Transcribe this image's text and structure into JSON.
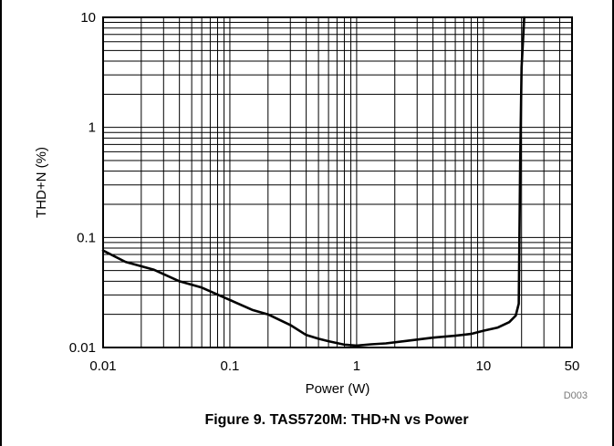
{
  "chart_data": {
    "type": "line",
    "title": "",
    "xlabel": "Power (W)",
    "ylabel": "THD+N (%)",
    "xscale": "log",
    "yscale": "log",
    "xlim": [
      0.01,
      50
    ],
    "ylim": [
      0.01,
      10
    ],
    "grid": true,
    "legend": "none",
    "x_ticks": [
      0.01,
      0.1,
      1,
      10,
      50
    ],
    "x_tick_labels": [
      "0.01",
      "0.1",
      "1",
      "10",
      "50"
    ],
    "y_ticks": [
      0.01,
      0.1,
      1,
      10
    ],
    "y_tick_labels": [
      "0.01",
      "0.1",
      "1",
      "10"
    ],
    "series": [
      {
        "color": "#000000",
        "x": [
          0.01,
          0.015,
          0.025,
          0.04,
          0.06,
          0.1,
          0.15,
          0.2,
          0.3,
          0.4,
          0.5,
          0.6,
          0.8,
          1.0,
          1.3,
          1.7,
          2.5,
          4,
          6,
          8,
          10,
          13,
          16,
          18,
          19,
          19.5,
          20,
          21
        ],
        "y": [
          0.076,
          0.06,
          0.051,
          0.04,
          0.035,
          0.027,
          0.022,
          0.02,
          0.016,
          0.013,
          0.012,
          0.0114,
          0.0106,
          0.0104,
          0.0107,
          0.0109,
          0.0115,
          0.0123,
          0.0128,
          0.0133,
          0.0142,
          0.0152,
          0.017,
          0.0195,
          0.025,
          0.5,
          3.5,
          10
        ]
      }
    ]
  },
  "annotations": {
    "code": "D003",
    "caption": "Figure 9. TAS5720M: THD+N vs Power"
  }
}
